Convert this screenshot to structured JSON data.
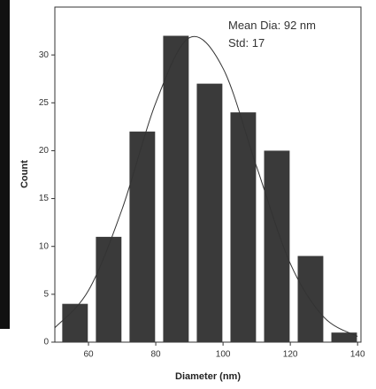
{
  "chart_data": {
    "type": "histogram",
    "bins": [
      51,
      61,
      71,
      81,
      91,
      101,
      111,
      121,
      131,
      141
    ],
    "values": [
      4,
      11,
      22,
      32,
      27,
      24,
      20,
      9,
      1
    ],
    "color": "#3a3a3a",
    "fit": {
      "color": "#333333",
      "x": [
        50,
        60,
        70,
        80,
        90,
        100,
        110,
        120,
        130,
        140
      ],
      "values": [
        1.5,
        5.4,
        13.9,
        25.0,
        31.8,
        28.6,
        18.3,
        8.2,
        2.6,
        0.6
      ]
    },
    "xlabel": "Diameter (nm)",
    "ylabel": "Count",
    "annotations": [
      "Mean Dia: 92 nm",
      "Std: 17"
    ],
    "xlim": [
      50,
      141
    ],
    "xticks": [
      60,
      80,
      100,
      120,
      140
    ],
    "ylim": [
      0,
      35
    ],
    "yticks": [
      0,
      5,
      10,
      15,
      20,
      25,
      30
    ]
  }
}
